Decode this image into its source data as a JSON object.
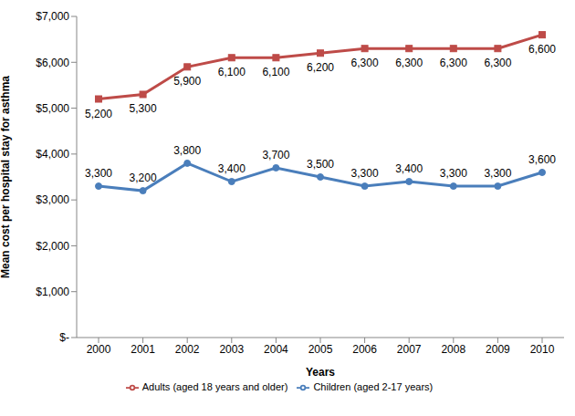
{
  "chart_data": {
    "type": "line",
    "x_label": "Years",
    "y_label": "Mean cost per hospital stay for asthma",
    "categories": [
      "2000",
      "2001",
      "2002",
      "2003",
      "2004",
      "2005",
      "2006",
      "2007",
      "2008",
      "2009",
      "2010"
    ],
    "series": [
      {
        "name": "Children (aged 2-17 years)",
        "color": "#4a7ebb",
        "marker": "circle",
        "values": [
          3300,
          3200,
          3800,
          3400,
          3700,
          3500,
          3300,
          3400,
          3300,
          3300,
          3600
        ],
        "value_labels": [
          "3,300",
          "3,200",
          "3,800",
          "3,400",
          "3,700",
          "3,500",
          "3,300",
          "3,400",
          "3,300",
          "3,300",
          "3,600"
        ]
      },
      {
        "name": "Adults (aged 18 years and older)",
        "color": "#be4b48",
        "marker": "square",
        "values": [
          5200,
          5300,
          5900,
          6100,
          6100,
          6200,
          6300,
          6300,
          6300,
          6300,
          6600
        ],
        "value_labels": [
          "5,200",
          "5,300",
          "5,900",
          "6,100",
          "6,100",
          "6,200",
          "6,300",
          "6,300",
          "6,300",
          "6,300",
          "6,600"
        ]
      }
    ],
    "ylim": [
      0,
      7000
    ],
    "yticks": [
      {
        "value": 0,
        "label": "$-"
      },
      {
        "value": 1000,
        "label": "$1,000"
      },
      {
        "value": 2000,
        "label": "$2,000"
      },
      {
        "value": 3000,
        "label": "$3,000"
      },
      {
        "value": 4000,
        "label": "$4,000"
      },
      {
        "value": 5000,
        "label": "$5,000"
      },
      {
        "value": 6000,
        "label": "$6,000"
      },
      {
        "value": 7000,
        "label": "$7,000"
      }
    ],
    "grid": false,
    "legend": "bottom",
    "data_labels": true
  }
}
